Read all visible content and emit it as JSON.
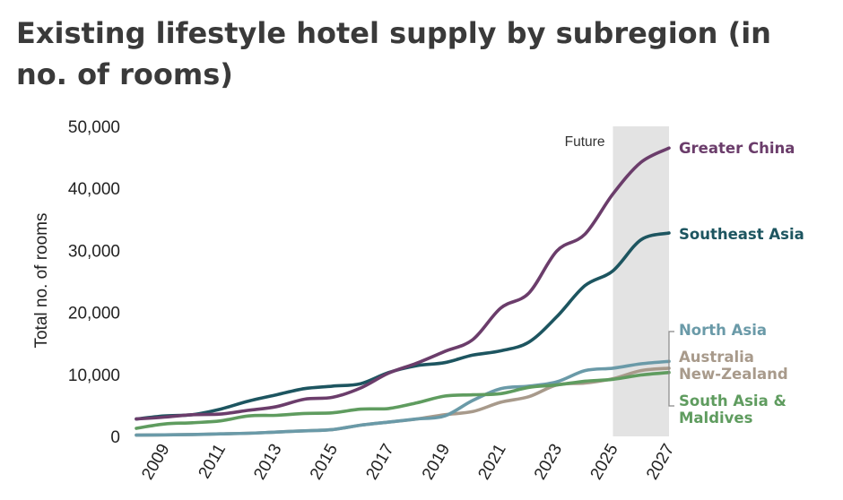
{
  "title": "Existing lifestyle hotel supply by subregion (in no. of rooms)",
  "chart_data": {
    "type": "line",
    "title": "Existing lifestyle hotel supply by subregion (in no. of rooms)",
    "xlabel": "",
    "ylabel": "Total no. of rooms",
    "xlim": [
      2008,
      2027
    ],
    "ylim": [
      0,
      50000
    ],
    "xticks": [
      2009,
      2011,
      2013,
      2015,
      2017,
      2019,
      2021,
      2023,
      2025,
      2027
    ],
    "yticks": [
      0,
      10000,
      20000,
      30000,
      40000,
      50000
    ],
    "ytick_labels": [
      "0",
      "10,000",
      "20,000",
      "30,000",
      "40,000",
      "50,000"
    ],
    "grid": false,
    "legend": "direct labels at right",
    "annotation": {
      "text": "Future",
      "x_start": 2025,
      "x_end": 2027
    },
    "x": [
      2008,
      2009,
      2010,
      2011,
      2012,
      2013,
      2014,
      2015,
      2016,
      2017,
      2018,
      2019,
      2020,
      2021,
      2022,
      2023,
      2024,
      2025,
      2026,
      2027
    ],
    "series": [
      {
        "name": "Greater China",
        "color": "#6b3d6b",
        "values": [
          2800,
          3100,
          3500,
          3600,
          4200,
          4800,
          6000,
          6300,
          7800,
          10200,
          11800,
          13700,
          15600,
          20700,
          23100,
          29900,
          32600,
          39100,
          44200,
          46500
        ]
      },
      {
        "name": "Southeast Asia",
        "color": "#1d5560",
        "values": [
          2800,
          3300,
          3500,
          4400,
          5700,
          6700,
          7700,
          8100,
          8500,
          10300,
          11400,
          11900,
          13100,
          13800,
          15200,
          19300,
          24300,
          26700,
          31700,
          32800
        ]
      },
      {
        "name": "North Asia",
        "color": "#6a9aa8",
        "values": [
          200,
          250,
          300,
          400,
          500,
          700,
          900,
          1100,
          1800,
          2300,
          2800,
          3300,
          5800,
          7700,
          8100,
          8800,
          10600,
          11000,
          11700,
          12100
        ]
      },
      {
        "name": "Australia New-Zealand",
        "color": "#a89a8b",
        "values": [
          200,
          250,
          300,
          400,
          500,
          700,
          900,
          1100,
          1800,
          2300,
          2800,
          3500,
          4000,
          5500,
          6400,
          8300,
          8600,
          9300,
          10600,
          11000
        ]
      },
      {
        "name": "South Asia & Maldives",
        "color": "#5f9c5f",
        "values": [
          1300,
          2000,
          2200,
          2500,
          3300,
          3400,
          3700,
          3800,
          4400,
          4500,
          5400,
          6500,
          6700,
          6900,
          7900,
          8300,
          8900,
          9200,
          9900,
          10300
        ]
      }
    ],
    "label_lines": {
      "north_asia": "North Asia",
      "australia_1": "Australia",
      "australia_2": "New-Zealand",
      "south_asia_1": "South Asia &",
      "south_asia_2": "Maldives"
    }
  }
}
